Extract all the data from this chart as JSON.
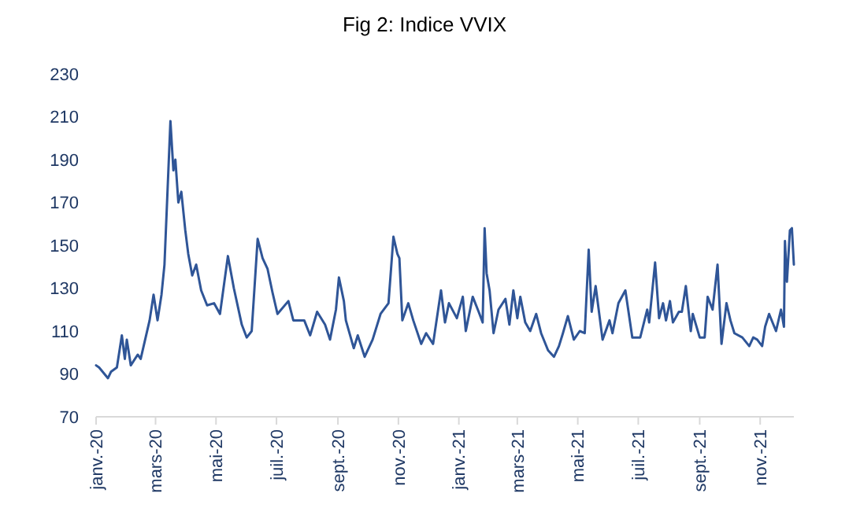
{
  "chart_data": {
    "type": "line",
    "title": "Fig 2: Indice VVIX",
    "x": [
      "2020-01-01",
      "2020-01-04",
      "2020-01-13",
      "2020-01-16",
      "2020-01-22",
      "2020-01-27",
      "2020-01-30",
      "2020-02-01",
      "2020-02-05",
      "2020-02-12",
      "2020-02-15",
      "2020-02-24",
      "2020-02-28",
      "2020-03-03",
      "2020-03-07",
      "2020-03-10",
      "2020-03-16",
      "2020-03-19",
      "2020-03-21",
      "2020-03-24",
      "2020-03-27",
      "2020-03-31",
      "2020-04-03",
      "2020-04-07",
      "2020-04-11",
      "2020-04-16",
      "2020-04-22",
      "2020-04-29",
      "2020-05-05",
      "2020-05-13",
      "2020-05-19",
      "2020-05-27",
      "2020-06-01",
      "2020-06-06",
      "2020-06-12",
      "2020-06-17",
      "2020-06-22",
      "2020-06-27",
      "2020-07-02",
      "2020-07-13",
      "2020-07-18",
      "2020-07-29",
      "2020-08-04",
      "2020-08-11",
      "2020-08-19",
      "2020-08-24",
      "2020-08-30",
      "2020-09-02",
      "2020-09-07",
      "2020-09-09",
      "2020-09-17",
      "2020-09-21",
      "2020-09-28",
      "2020-10-06",
      "2020-10-14",
      "2020-10-22",
      "2020-10-27",
      "2020-10-31",
      "2020-11-02",
      "2020-11-05",
      "2020-11-11",
      "2020-11-16",
      "2020-11-24",
      "2020-11-29",
      "2020-12-06",
      "2020-12-14",
      "2020-12-18",
      "2020-12-22",
      "2020-12-30",
      "2021-01-05",
      "2021-01-08",
      "2021-01-15",
      "2021-01-21",
      "2021-01-25",
      "2021-01-27",
      "2021-01-29",
      "2021-02-01",
      "2021-02-05",
      "2021-02-10",
      "2021-02-17",
      "2021-02-21",
      "2021-02-25",
      "2021-03-01",
      "2021-03-04",
      "2021-03-09",
      "2021-03-14",
      "2021-03-20",
      "2021-03-25",
      "2021-04-01",
      "2021-04-07",
      "2021-04-12",
      "2021-04-16",
      "2021-04-21",
      "2021-04-27",
      "2021-05-03",
      "2021-05-08",
      "2021-05-12",
      "2021-05-15",
      "2021-05-19",
      "2021-05-26",
      "2021-06-02",
      "2021-06-05",
      "2021-06-11",
      "2021-06-18",
      "2021-06-25",
      "2021-07-03",
      "2021-07-10",
      "2021-07-12",
      "2021-07-18",
      "2021-07-22",
      "2021-07-26",
      "2021-07-29",
      "2021-08-02",
      "2021-08-05",
      "2021-08-11",
      "2021-08-14",
      "2021-08-18",
      "2021-08-23",
      "2021-08-25",
      "2021-09-01",
      "2021-09-06",
      "2021-09-09",
      "2021-09-14",
      "2021-09-19",
      "2021-09-23",
      "2021-09-28",
      "2021-10-02",
      "2021-10-06",
      "2021-10-14",
      "2021-10-21",
      "2021-10-25",
      "2021-10-29",
      "2021-11-03",
      "2021-11-06",
      "2021-11-10",
      "2021-11-17",
      "2021-11-22",
      "2021-11-25",
      "2021-11-26",
      "2021-11-28",
      "2021-12-01",
      "2021-12-03",
      "2021-12-05"
    ],
    "series": [
      {
        "color": "#2f5597",
        "values": [
          94,
          93,
          88,
          91,
          93,
          108,
          97,
          106,
          94,
          99,
          97,
          115,
          127,
          115,
          127,
          141,
          208,
          185,
          190,
          170,
          175,
          157,
          146,
          136,
          141,
          129,
          122,
          123,
          118,
          145,
          130,
          113,
          107,
          110,
          153,
          144,
          139,
          128,
          118,
          124,
          115,
          115,
          108,
          119,
          113,
          106,
          120,
          135,
          124,
          115,
          102,
          108,
          98,
          106,
          118,
          123,
          154,
          146,
          144,
          115,
          123,
          115,
          104,
          109,
          104,
          129,
          114,
          123,
          116,
          126,
          110,
          126,
          119,
          114,
          158,
          137,
          129,
          109,
          120,
          125,
          113,
          129,
          116,
          126,
          114,
          110,
          118,
          109,
          101,
          98,
          103,
          109,
          117,
          106,
          110,
          109,
          148,
          119,
          131,
          106,
          115,
          109,
          123,
          129,
          107,
          107,
          120,
          114,
          142,
          116,
          123,
          115,
          124,
          114,
          119,
          119,
          131,
          110,
          118,
          107,
          107,
          126,
          120,
          141,
          104,
          123,
          115,
          109,
          107,
          103,
          107,
          106,
          103,
          112,
          118,
          110,
          120,
          112,
          152,
          133,
          157,
          158,
          141
        ]
      }
    ],
    "xlim": [
      "2020-01-01",
      "2021-12-05"
    ],
    "xticks": [
      {
        "value": "2020-01-01",
        "label": "janv.-20"
      },
      {
        "value": "2020-03-01",
        "label": "mars-20"
      },
      {
        "value": "2020-05-01",
        "label": "mai-20"
      },
      {
        "value": "2020-07-01",
        "label": "juil.-20"
      },
      {
        "value": "2020-09-01",
        "label": "sept.-20"
      },
      {
        "value": "2020-11-01",
        "label": "nov.-20"
      },
      {
        "value": "2021-01-01",
        "label": "janv.-21"
      },
      {
        "value": "2021-03-01",
        "label": "mars-21"
      },
      {
        "value": "2021-05-01",
        "label": "mai-21"
      },
      {
        "value": "2021-07-01",
        "label": "juil.-21"
      },
      {
        "value": "2021-09-01",
        "label": "sept.-21"
      },
      {
        "value": "2021-11-01",
        "label": "nov.-21"
      }
    ],
    "ylim": [
      70,
      230
    ],
    "yticks": [
      70,
      90,
      110,
      130,
      150,
      170,
      190,
      210,
      230
    ],
    "grid": false,
    "marker": "none",
    "line_style": "solid"
  }
}
